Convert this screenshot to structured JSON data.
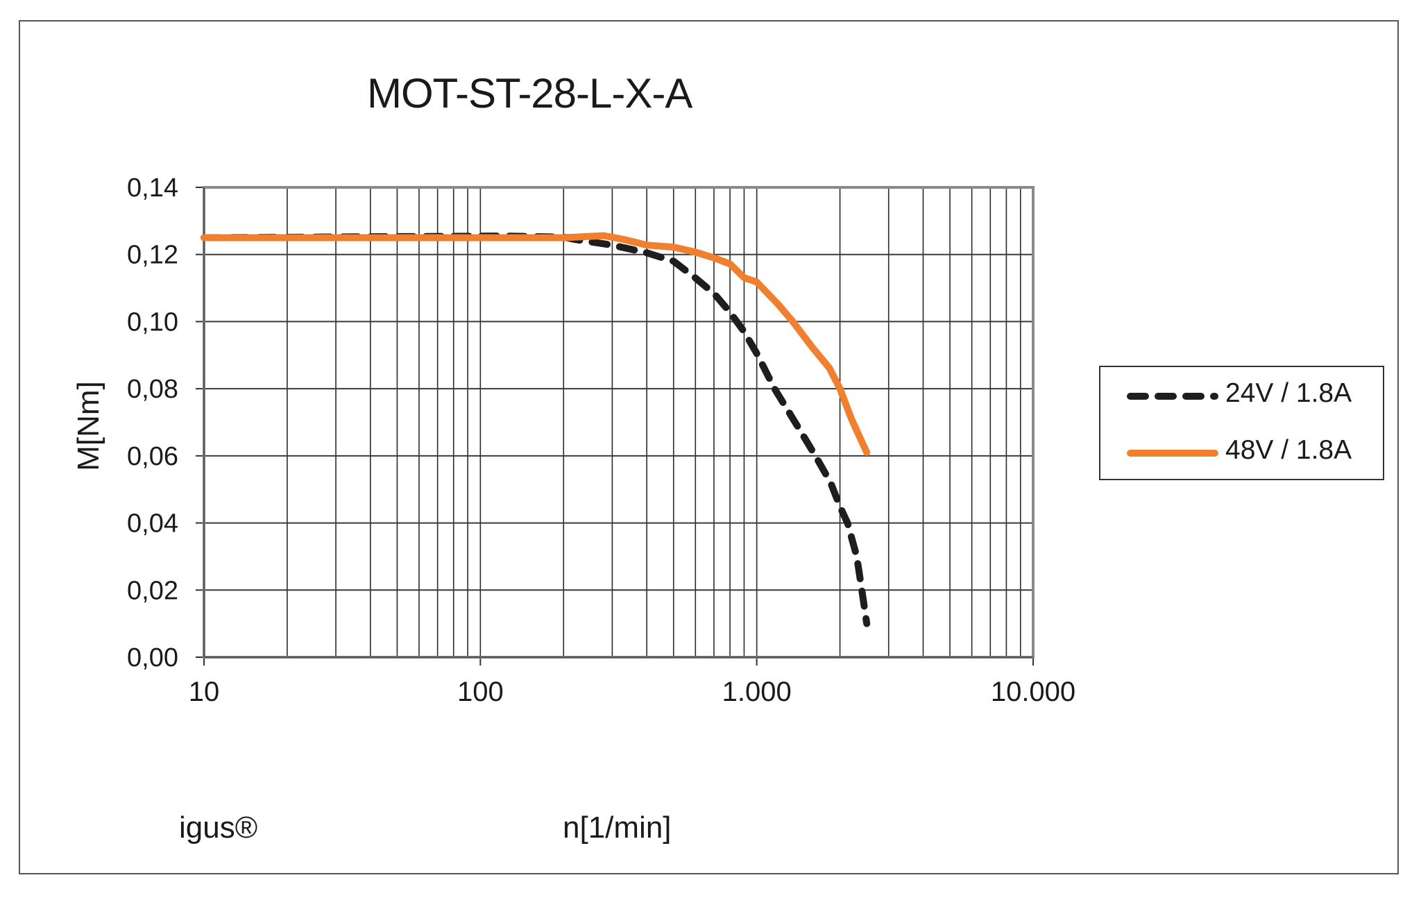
{
  "chart_data": {
    "type": "line",
    "title": "MOT-ST-28-L-X-A",
    "xlabel": "n[1/min]",
    "ylabel": "M[Nm]",
    "xscale": "log",
    "xlim": [
      10,
      10000
    ],
    "ylim": [
      0,
      0.14
    ],
    "x_tick_labels": [
      "10",
      "100",
      "1.000",
      "10.000"
    ],
    "x_ticks": [
      10,
      100,
      1000,
      10000
    ],
    "y_tick_labels": [
      "0,00",
      "0,02",
      "0,04",
      "0,06",
      "0,08",
      "0,10",
      "0,12",
      "0,14"
    ],
    "y_ticks": [
      0,
      0.02,
      0.04,
      0.06,
      0.08,
      0.1,
      0.12,
      0.14
    ],
    "grid": true,
    "legend_position": "right",
    "annotation": "igus®",
    "series": [
      {
        "name": "24V / 1.8A",
        "color": "#1e1e1e",
        "style": "dashed",
        "x": [
          10,
          120,
          200,
          220,
          300,
          400,
          500,
          600,
          700,
          800,
          900,
          1000,
          1160,
          1400,
          1630,
          1850,
          2000,
          2130,
          2300,
          2400,
          2500
        ],
        "y": [
          0.125,
          0.1255,
          0.1252,
          0.1245,
          0.1228,
          0.1205,
          0.118,
          0.113,
          0.1084,
          0.1028,
          0.097,
          0.0905,
          0.08,
          0.069,
          0.06,
          0.052,
          0.0449,
          0.04,
          0.03,
          0.02,
          0.01
        ]
      },
      {
        "name": "48V / 1.8A",
        "color": "#f08030",
        "style": "solid",
        "x": [
          10,
          100,
          200,
          280,
          330,
          400,
          500,
          600,
          700,
          800,
          900,
          1000,
          1200,
          1350,
          1600,
          1830,
          2000,
          2200,
          2500
        ],
        "y": [
          0.125,
          0.125,
          0.125,
          0.1256,
          0.1245,
          0.1228,
          0.1222,
          0.1207,
          0.119,
          0.1172,
          0.1131,
          0.1118,
          0.105,
          0.1,
          0.092,
          0.0862,
          0.08,
          0.071,
          0.061
        ]
      }
    ]
  },
  "labels": {
    "title": "MOT-ST-28-L-X-A",
    "ylabel": "M[Nm]",
    "xlabel": "n[1/min]",
    "brand": "igus®"
  },
  "legend": {
    "items": [
      {
        "label": "24V / 1.8A",
        "color": "#1e1e1e",
        "style": "dashed"
      },
      {
        "label": "48V / 1.8A",
        "color": "#f08030",
        "style": "solid"
      }
    ]
  }
}
